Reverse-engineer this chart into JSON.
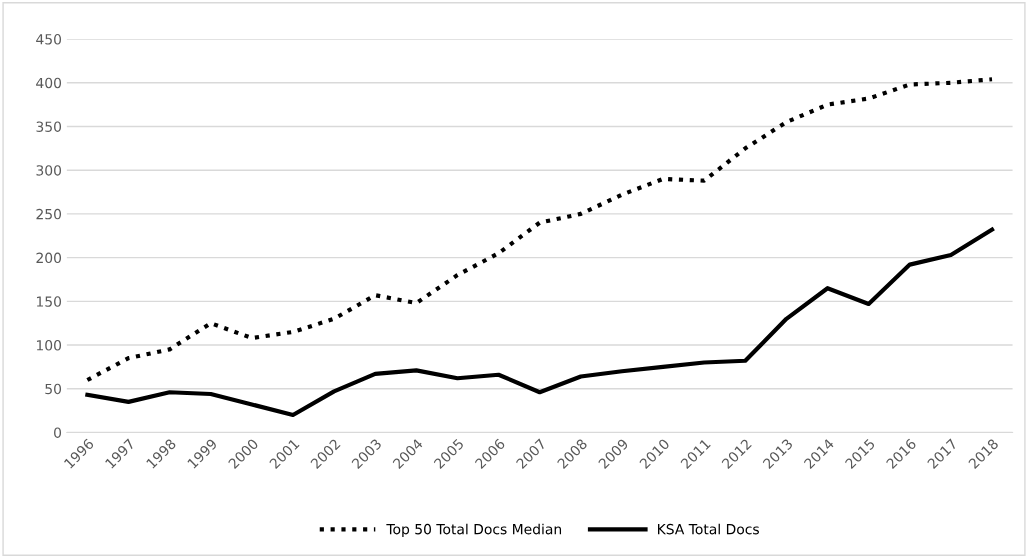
{
  "chart_data": {
    "type": "line",
    "categories": [
      "1996",
      "1997",
      "1998",
      "1999",
      "2000",
      "2001",
      "2002",
      "2003",
      "2004",
      "2005",
      "2006",
      "2007",
      "2008",
      "2009",
      "2010",
      "2011",
      "2012",
      "2013",
      "2014",
      "2015",
      "2016",
      "2017",
      "2018"
    ],
    "series": [
      {
        "name": "Top 50 Total Docs Median",
        "color": "#000000",
        "line_style": "dotted",
        "values": [
          60,
          85,
          95,
          125,
          108,
          115,
          130,
          157,
          148,
          180,
          205,
          240,
          250,
          272,
          290,
          288,
          325,
          355,
          375,
          382,
          398,
          400,
          404
        ]
      },
      {
        "name": "KSA Total Docs",
        "color": "#000000",
        "line_style": "solid",
        "values": [
          43,
          35,
          46,
          44,
          32,
          20,
          47,
          67,
          71,
          62,
          66,
          46,
          64,
          70,
          75,
          80,
          82,
          130,
          165,
          147,
          192,
          203,
          232
        ]
      }
    ],
    "ylim": [
      0,
      450
    ],
    "yticks": [
      0,
      50,
      100,
      150,
      200,
      250,
      300,
      350,
      400,
      450
    ],
    "grid": "y",
    "legend": "bottom"
  }
}
